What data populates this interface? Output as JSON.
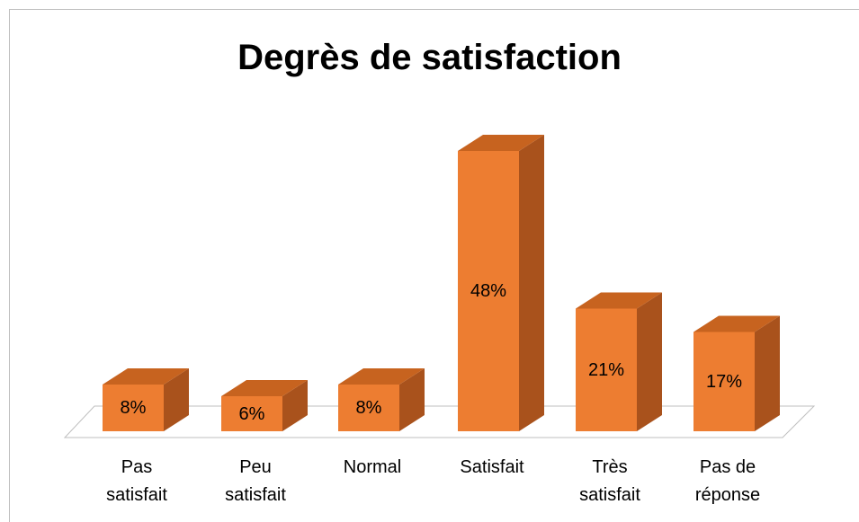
{
  "chart_data": {
    "type": "bar",
    "title": "Degrès de satisfaction",
    "categories": [
      "Pas\nsatisfait",
      "Peu\nsatisfait",
      "Normal",
      "Satisfait",
      "Très\nsatisfait",
      "Pas de\nréponse"
    ],
    "values": [
      8,
      6,
      8,
      48,
      21,
      17
    ],
    "value_labels": [
      "8%",
      "6%",
      "8%",
      "48%",
      "21%",
      "17%"
    ],
    "color": "#ed7d31"
  }
}
